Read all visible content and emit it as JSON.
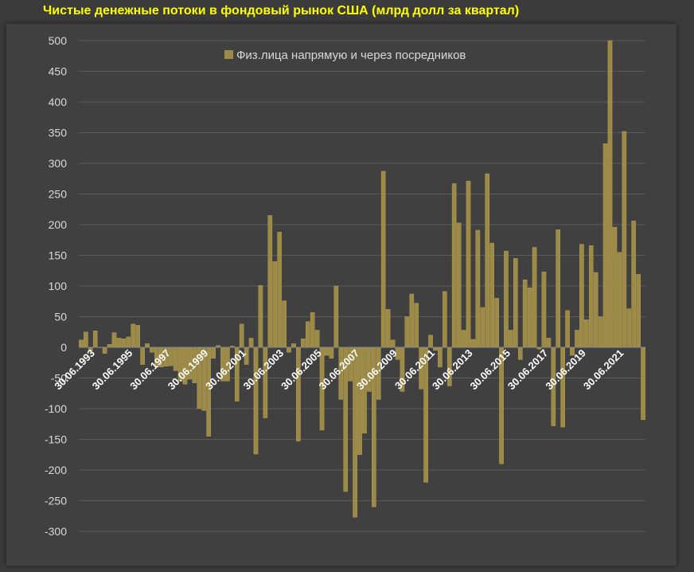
{
  "chart_data": {
    "type": "bar",
    "title": "Чистые денежные потоки в фондовый рынок США (млрд долл за квартал)",
    "xlabel": "",
    "ylabel": "",
    "ylim": [
      -300,
      500
    ],
    "yticks": [
      500,
      450,
      400,
      350,
      300,
      250,
      200,
      150,
      100,
      50,
      0,
      -50,
      -100,
      -150,
      -200,
      -250,
      -300
    ],
    "grid": true,
    "legend_position": "top",
    "colors": {
      "bar": "#9c8a46",
      "bar_edge": "#b8a45a",
      "grid": "#5a5a5a",
      "title": "#ffff00"
    },
    "x_label_list": [
      "30.06.1993",
      "30.06.1995",
      "30.06.1997",
      "30.06.1999",
      "30.06.2001",
      "30.06.2003",
      "30.06.2005",
      "30.06.2007",
      "30.06.2009",
      "30.06.2011",
      "30.06.2013",
      "30.06.2015",
      "30.06.2017",
      "30.06.2019",
      "30.06.2021"
    ],
    "series": [
      {
        "name": "Физ.лица напрямую и через посредников",
        "values": [
          12,
          25,
          -7,
          27,
          0,
          -10,
          5,
          24,
          15,
          14,
          17,
          38,
          36,
          -28,
          6,
          -8,
          -32,
          -32,
          -31,
          -30,
          -38,
          -55,
          -60,
          -52,
          -58,
          -100,
          -103,
          -145,
          -18,
          3,
          -55,
          -55,
          2,
          -88,
          38,
          -28,
          15,
          -174,
          101,
          -115,
          215,
          140,
          188,
          76,
          -8,
          6,
          -153,
          14,
          42,
          57,
          28,
          -135,
          -13,
          -18,
          100,
          -85,
          -235,
          -55,
          -277,
          -175,
          -140,
          -72,
          -260,
          -85,
          287,
          62,
          12,
          -20,
          -72,
          50,
          87,
          72,
          -68,
          -220,
          20,
          -5,
          -32,
          91,
          -63,
          267,
          203,
          28,
          271,
          13,
          191,
          65,
          283,
          170,
          80,
          -190,
          157,
          28,
          145,
          -20,
          110,
          97,
          163,
          -3,
          123,
          15,
          -128,
          192,
          -130,
          60,
          -13,
          28,
          168,
          45,
          166,
          122,
          50,
          332,
          500,
          196,
          155,
          352,
          63,
          206,
          119,
          -118
        ]
      }
    ]
  }
}
